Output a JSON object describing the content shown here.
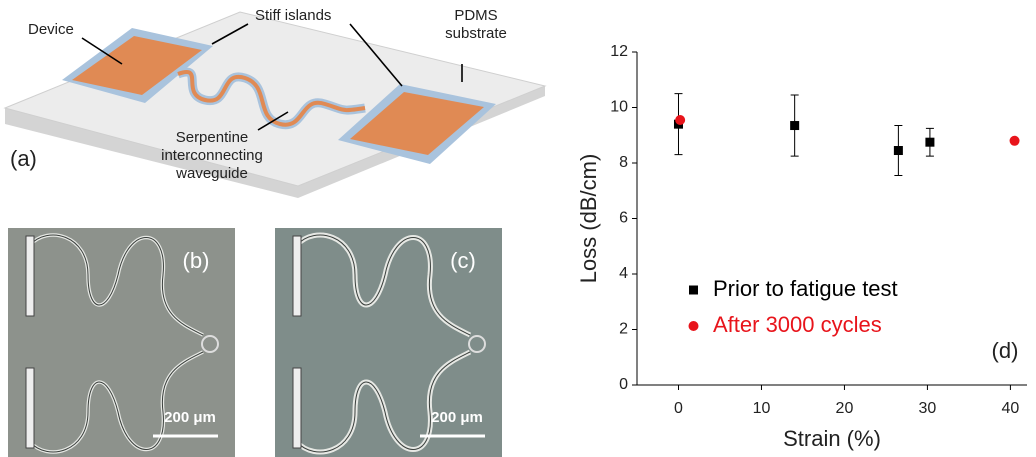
{
  "diagram": {
    "labels": [
      "Device",
      "Stiff islands",
      "PDMS",
      "substrate",
      "Serpentine",
      "interconnecting",
      "waveguide"
    ],
    "panel": "(a)"
  },
  "micrographs": [
    {
      "panel": "(b)",
      "scale": "200 μm"
    },
    {
      "panel": "(c)",
      "scale": "200 μm"
    }
  ],
  "chart_data": {
    "type": "scatter",
    "panel": "(d)",
    "x_label": "Strain (%)",
    "y_label": "Loss (dB/cm)",
    "xlim": [
      -5,
      42
    ],
    "xticks": [
      0,
      10,
      20,
      30,
      40
    ],
    "ylim": [
      0,
      12
    ],
    "yticks": [
      0,
      2,
      4,
      6,
      8,
      10,
      12
    ],
    "legend": "lower left",
    "series": [
      {
        "name": "Prior to fatigue test",
        "color": "#000000",
        "marker": "square",
        "x": [
          0,
          14,
          26.5,
          30.3
        ],
        "values": [
          9.4,
          9.35,
          8.45,
          8.75
        ],
        "errors": [
          1.1,
          1.1,
          0.9,
          0.5
        ]
      },
      {
        "name": "After 3000 cycles",
        "color": "#e8141b",
        "marker": "circle",
        "x": [
          0.2,
          40.5
        ],
        "values": [
          9.55,
          8.8
        ]
      }
    ]
  }
}
